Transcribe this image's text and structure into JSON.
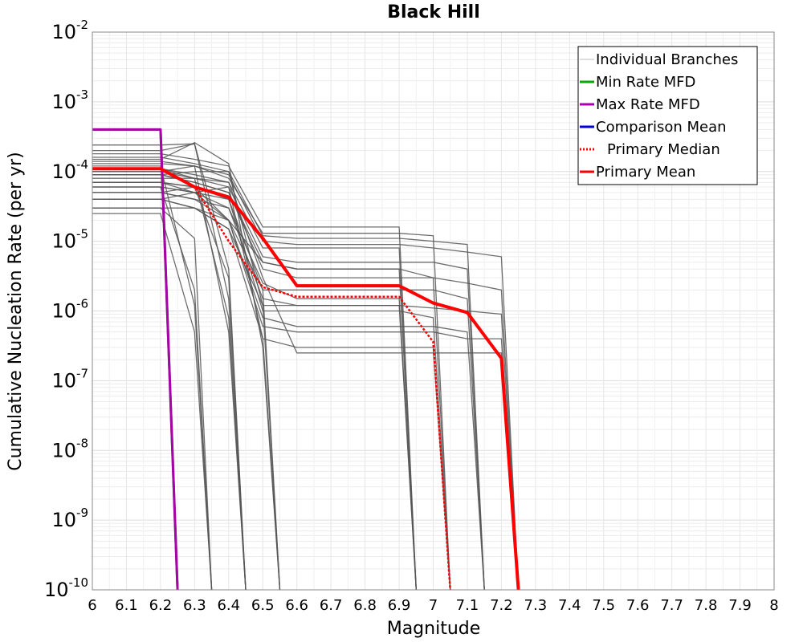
{
  "chart_data": {
    "type": "line",
    "title": "Black Hill",
    "xlabel": "Magnitude",
    "ylabel": "Cumulative Nucleation Rate (per yr)",
    "xlim": [
      6,
      8
    ],
    "ylim": [
      1e-10,
      0.01
    ],
    "yscale": "log",
    "grid": true,
    "legend_placement": "top-right",
    "x_ticks": [
      "6",
      "6.1",
      "6.2",
      "6.3",
      "6.4",
      "6.5",
      "6.6",
      "6.7",
      "6.8",
      "6.9",
      "7",
      "7.1",
      "7.2",
      "7.3",
      "7.4",
      "7.5",
      "7.6",
      "7.7",
      "7.8",
      "7.9",
      "8"
    ],
    "y_ticks": [
      {
        "base": "10",
        "exp": "-2"
      },
      {
        "base": "10",
        "exp": "-3"
      },
      {
        "base": "10",
        "exp": "-4"
      },
      {
        "base": "10",
        "exp": "-5"
      },
      {
        "base": "10",
        "exp": "-6"
      },
      {
        "base": "10",
        "exp": "-7"
      },
      {
        "base": "10",
        "exp": "-8"
      },
      {
        "base": "10",
        "exp": "-9"
      },
      {
        "base": "10",
        "exp": "-10"
      }
    ],
    "branch_color": "#555555",
    "series": [
      {
        "name": "Individual Branches",
        "color": "#555555",
        "style": "thin",
        "lines": [
          {
            "x": [
              6,
              6.2,
              6.25
            ],
            "y": [
              0.0004,
              0.0004,
              1e-10
            ]
          },
          {
            "x": [
              6,
              6.2,
              6.3,
              6.35
            ],
            "y": [
              3e-05,
              3e-05,
              1.1e-05,
              1e-10
            ]
          },
          {
            "x": [
              6,
              6.2,
              6.3,
              6.35
            ],
            "y": [
              2.5e-05,
              2.5e-05,
              5e-07,
              1e-10
            ]
          },
          {
            "x": [
              6,
              6.2,
              6.3,
              6.35
            ],
            "y": [
              0.00012,
              0.00012,
              1.2e-06,
              1e-10
            ]
          },
          {
            "x": [
              6,
              6.2,
              6.3,
              6.35
            ],
            "y": [
              6e-05,
              6e-05,
              2e-06,
              1e-10
            ]
          },
          {
            "x": [
              6,
              6.2,
              6.3,
              6.4,
              6.45
            ],
            "y": [
              0.00024,
              0.00024,
              0.00025,
              4e-06,
              1e-10
            ]
          },
          {
            "x": [
              6,
              6.2,
              6.3,
              6.4,
              6.45
            ],
            "y": [
              0.0002,
              0.0002,
              0.00025,
              1.5e-06,
              1e-10
            ]
          },
          {
            "x": [
              6,
              6.2,
              6.3,
              6.4,
              6.45
            ],
            "y": [
              0.0001,
              0.0001,
              0.00012,
              5e-07,
              1e-10
            ]
          },
          {
            "x": [
              6,
              6.2,
              6.3,
              6.4,
              6.45
            ],
            "y": [
              8e-05,
              8e-05,
              8e-05,
              8e-07,
              1e-10
            ]
          },
          {
            "x": [
              6,
              6.2,
              6.3,
              6.4,
              6.45
            ],
            "y": [
              5e-05,
              5e-05,
              6e-05,
              3e-06,
              1e-10
            ]
          },
          {
            "x": [
              6,
              6.2,
              6.3,
              6.4,
              6.5,
              6.55
            ],
            "y": [
              0.00015,
              0.00015,
              0.00026,
              0.00013,
              3e-07,
              1e-10
            ]
          },
          {
            "x": [
              6,
              6.2,
              6.3,
              6.4,
              6.5,
              6.55
            ],
            "y": [
              9e-05,
              9e-05,
              0.0001,
              0.0001,
              1.2e-06,
              1e-10
            ]
          },
          {
            "x": [
              6,
              6.2,
              6.3,
              6.4,
              6.5,
              6.55
            ],
            "y": [
              4e-05,
              4e-05,
              5e-05,
              6e-05,
              4e-07,
              1e-10
            ]
          },
          {
            "x": [
              6,
              6.2,
              6.3,
              6.4,
              6.5,
              6.55
            ],
            "y": [
              7e-05,
              7e-05,
              6e-05,
              2e-05,
              2e-06,
              1e-10
            ]
          },
          {
            "x": [
              6,
              6.2,
              6.3,
              6.4,
              6.5,
              6.6,
              6.9,
              6.95
            ],
            "y": [
              0.00018,
              0.00018,
              0.00015,
              0.00012,
              1.6e-05,
              1.6e-05,
              1.6e-05,
              1e-10
            ]
          },
          {
            "x": [
              6,
              6.2,
              6.3,
              6.4,
              6.5,
              6.6,
              6.9,
              6.95
            ],
            "y": [
              0.00011,
              0.00011,
              8e-05,
              7e-05,
              8e-06,
              8e-06,
              8e-06,
              1e-10
            ]
          },
          {
            "x": [
              6,
              6.2,
              6.3,
              6.4,
              6.5,
              6.6,
              6.9,
              6.95
            ],
            "y": [
              5e-05,
              5e-05,
              4e-05,
              3e-05,
              2.5e-06,
              1.5e-06,
              1.5e-06,
              1e-10
            ]
          },
          {
            "x": [
              6,
              6.2,
              6.3,
              6.4,
              6.5,
              6.6,
              6.9,
              6.95
            ],
            "y": [
              7e-05,
              7e-05,
              5e-05,
              2e-05,
              5e-06,
              4e-06,
              4e-06,
              1e-10
            ]
          },
          {
            "x": [
              6,
              6.2,
              6.3,
              6.4,
              6.5,
              6.6,
              6.9,
              6.95
            ],
            "y": [
              3e-05,
              3e-05,
              3e-05,
              1.5e-05,
              1.2e-06,
              1.2e-06,
              1.2e-06,
              1e-10
            ]
          },
          {
            "x": [
              6,
              6.2,
              6.3,
              6.4,
              6.5,
              6.6,
              6.9,
              7,
              7.05
            ],
            "y": [
              0.00013,
              0.00013,
              0.00012,
              8e-05,
              1.3e-05,
              1.3e-05,
              1.3e-05,
              1.2e-05,
              1e-10
            ]
          },
          {
            "x": [
              6,
              6.2,
              6.3,
              6.4,
              6.5,
              6.6,
              6.9,
              7,
              7.05
            ],
            "y": [
              9e-05,
              9e-05,
              7e-05,
              5e-05,
              5e-06,
              4e-06,
              4e-06,
              3e-06,
              1e-10
            ]
          },
          {
            "x": [
              6,
              6.2,
              6.3,
              6.4,
              6.5,
              6.6,
              6.9,
              7,
              7.05
            ],
            "y": [
              6e-05,
              6e-05,
              5e-05,
              4e-05,
              1e-06,
              1e-06,
              1e-06,
              8e-07,
              1e-10
            ]
          },
          {
            "x": [
              6,
              6.2,
              6.3,
              6.4,
              6.5,
              6.6,
              6.9,
              7,
              7.05
            ],
            "y": [
              4e-05,
              4e-05,
              3e-05,
              1.5e-05,
              4e-07,
              3e-07,
              3e-07,
              3e-07,
              1e-10
            ]
          },
          {
            "x": [
              6,
              6.2,
              6.3,
              6.4,
              6.5,
              6.6,
              6.9,
              7,
              7.1,
              7.15
            ],
            "y": [
              0.00016,
              0.00016,
              0.00013,
              0.0001,
              1.2e-05,
              1.1e-05,
              1.1e-05,
              1e-05,
              9e-06,
              1e-10
            ]
          },
          {
            "x": [
              6,
              6.2,
              6.3,
              6.4,
              6.5,
              6.6,
              6.9,
              7,
              7.1,
              7.15
            ],
            "y": [
              0.0001,
              0.0001,
              8e-05,
              6e-05,
              6e-06,
              5e-06,
              5e-06,
              5e-06,
              4e-06,
              1e-10
            ]
          },
          {
            "x": [
              6,
              6.2,
              6.3,
              6.4,
              6.5,
              6.6,
              6.9,
              7,
              7.1,
              7.15
            ],
            "y": [
              7e-05,
              7e-05,
              6e-05,
              4e-05,
              2e-06,
              2e-06,
              2e-06,
              2e-06,
              1.5e-06,
              1e-10
            ]
          },
          {
            "x": [
              6,
              6.2,
              6.3,
              6.4,
              6.5,
              6.6,
              6.9,
              7,
              7.1,
              7.15
            ],
            "y": [
              5e-05,
              5e-05,
              4e-05,
              2e-05,
              8e-07,
              6e-07,
              6e-07,
              6e-07,
              5e-07,
              1e-10
            ]
          },
          {
            "x": [
              6,
              6.2,
              6.3,
              6.4,
              6.5,
              6.6,
              6.9,
              7,
              7.1,
              7.2,
              7.25
            ],
            "y": [
              0.00014,
              0.00014,
              0.00012,
              9e-05,
              1e-05,
              9e-06,
              9e-06,
              8e-06,
              7e-06,
              6e-06,
              1e-10
            ]
          },
          {
            "x": [
              6,
              6.2,
              6.3,
              6.4,
              6.5,
              6.6,
              6.9,
              7,
              7.1,
              7.2,
              7.25
            ],
            "y": [
              9e-05,
              9e-05,
              7e-05,
              5e-05,
              4e-06,
              3e-06,
              3e-06,
              3e-06,
              2.5e-06,
              2e-06,
              1e-10
            ]
          },
          {
            "x": [
              6,
              6.2,
              6.3,
              6.4,
              6.5,
              6.6,
              6.9,
              7,
              7.1,
              7.2,
              7.25
            ],
            "y": [
              6e-05,
              6e-05,
              5e-05,
              3e-05,
              1.5e-06,
              1.2e-06,
              1.2e-06,
              1.1e-06,
              1e-06,
              9e-07,
              1e-10
            ]
          },
          {
            "x": [
              6,
              6.2,
              6.3,
              6.4,
              6.5,
              6.6,
              6.9,
              7,
              7.1,
              7.2,
              7.25
            ],
            "y": [
              4e-05,
              4e-05,
              3e-05,
              2e-05,
              6e-07,
              5e-07,
              5e-07,
              5e-07,
              4e-07,
              4e-07,
              1e-10
            ]
          },
          {
            "x": [
              6,
              6.2,
              6.3,
              6.4,
              6.5,
              6.6,
              6.9,
              7,
              7.1,
              7.2,
              7.25
            ],
            "y": [
              0.00011,
              0.00011,
              9e-05,
              7e-05,
              3e-06,
              2.5e-07,
              2.5e-07,
              2.5e-07,
              2.5e-07,
              2.5e-07,
              1e-10
            ]
          }
        ]
      },
      {
        "name": "Min Rate MFD",
        "color": "#00aa00",
        "style": "solid",
        "x": [
          6,
          6.2,
          6.25
        ],
        "y": [
          0.0004,
          0.0004,
          1e-10
        ]
      },
      {
        "name": "Max Rate MFD",
        "color": "#aa00aa",
        "style": "solid",
        "x": [
          6,
          6.2,
          6.25
        ],
        "y": [
          0.0004,
          0.0004,
          1e-10
        ]
      },
      {
        "name": "Comparison Mean",
        "color": "#0000dd",
        "style": "solid",
        "x": [],
        "y": []
      },
      {
        "name": "Primary Median",
        "color": "#ff0000",
        "style": "dotted",
        "x": [
          6,
          6.2,
          6.3,
          6.4,
          6.5,
          6.6,
          6.9,
          7,
          7.05
        ],
        "y": [
          0.00011,
          0.00011,
          6e-05,
          1e-05,
          2.2e-06,
          1.6e-06,
          1.6e-06,
          3.6e-07,
          1e-10
        ]
      },
      {
        "name": "Primary Mean",
        "color": "#ff0000",
        "style": "thick",
        "x": [
          6,
          6.2,
          6.3,
          6.4,
          6.5,
          6.6,
          6.9,
          7,
          7.1,
          7.2,
          7.25
        ],
        "y": [
          0.00011,
          0.00011,
          6e-05,
          4.3e-05,
          1.1e-05,
          2.3e-06,
          2.3e-06,
          1.3e-06,
          9.5e-07,
          2.1e-07,
          1e-10
        ]
      }
    ],
    "legend": [
      {
        "label": "Individual Branches",
        "color": "#bbbbbb",
        "style": "thin"
      },
      {
        "label": "Min Rate MFD",
        "color": "#00aa00",
        "style": "solid"
      },
      {
        "label": "Max Rate MFD",
        "color": "#aa00aa",
        "style": "solid"
      },
      {
        "label": "Comparison Mean",
        "color": "#0000dd",
        "style": "solid"
      },
      {
        "label": "Primary Median",
        "color": "#ff0000",
        "style": "dotted"
      },
      {
        "label": "Primary Mean",
        "color": "#ff0000",
        "style": "thick"
      }
    ]
  }
}
